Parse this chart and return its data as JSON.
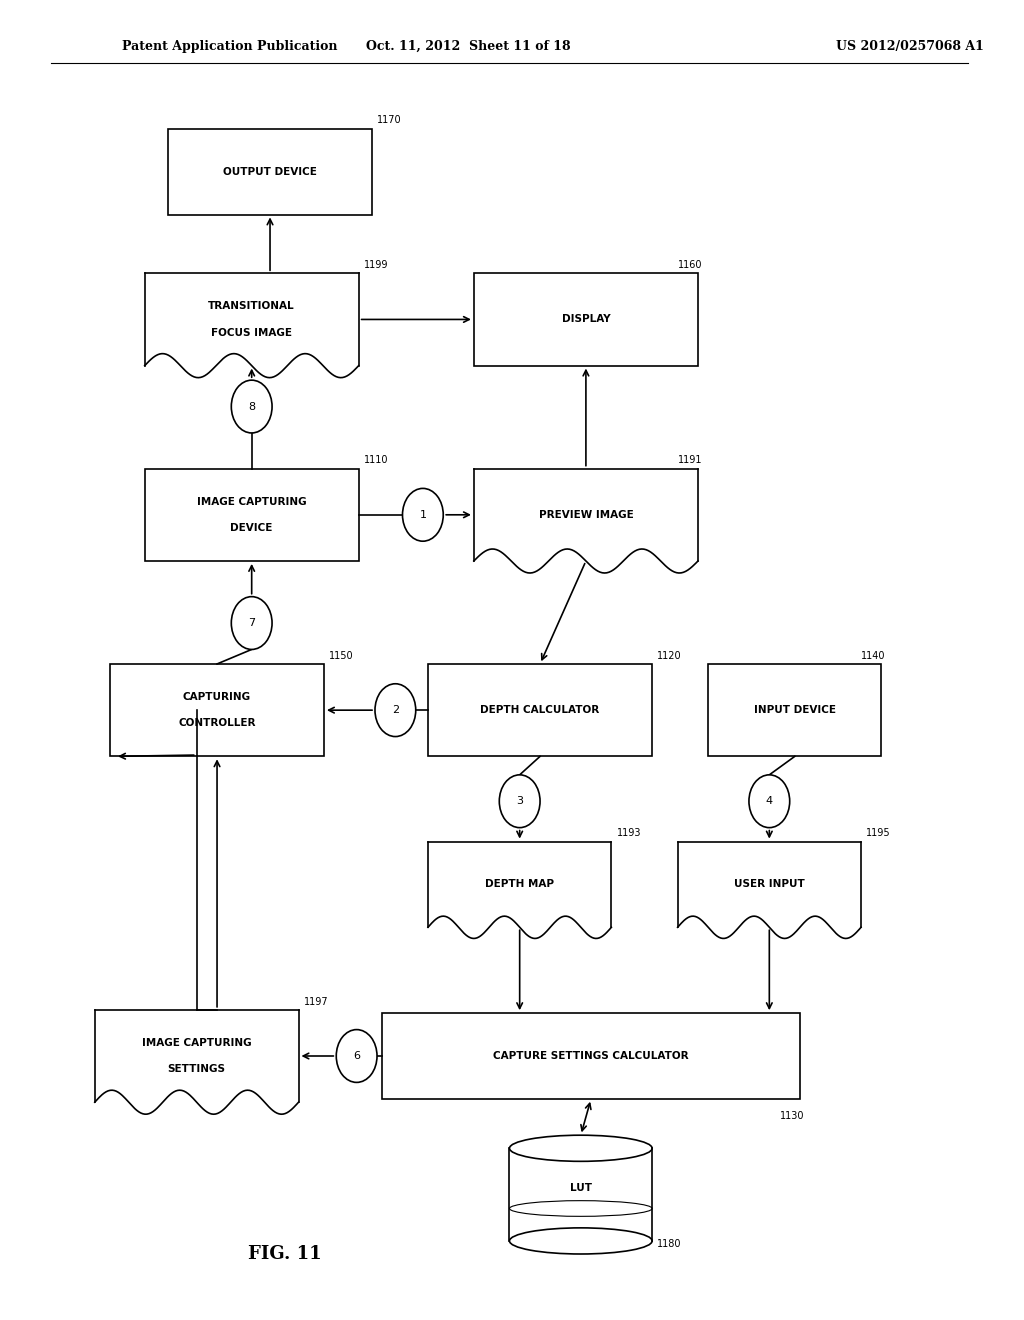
{
  "header_left": "Patent Application Publication",
  "header_mid": "Oct. 11, 2012  Sheet 11 of 18",
  "header_right": "US 2012/0257068 A1",
  "fig_label": "FIG. 11",
  "bg_color": "#ffffff",
  "line_color": "#000000"
}
